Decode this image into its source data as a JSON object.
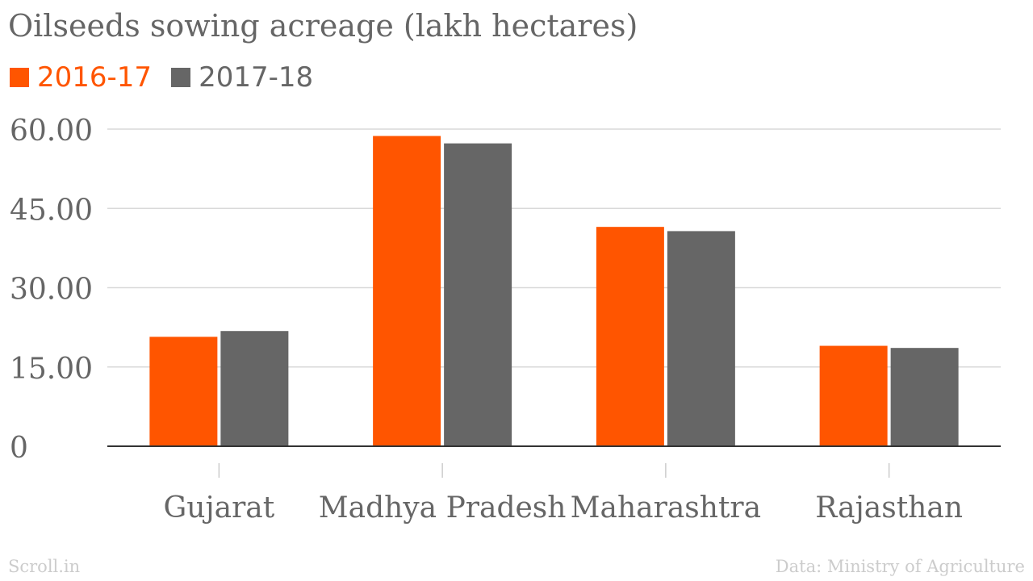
{
  "source_left": "Scroll.in",
  "source_right": "Data: Ministry of Agriculture",
  "chart_data": {
    "type": "bar",
    "title": "Oilseeds sowing acreage (lakh hectares)",
    "categories": [
      "Gujarat",
      "Madhya Pradesh",
      "Maharashtra",
      "Rajasthan"
    ],
    "series": [
      {
        "name": "2016-17",
        "color": "#ff5500",
        "values": [
          20.7,
          58.7,
          41.5,
          19.0
        ]
      },
      {
        "name": "2017-18",
        "color": "#666666",
        "values": [
          21.8,
          57.3,
          40.7,
          18.6
        ]
      }
    ],
    "yticks": [
      "0",
      "15.00",
      "30.00",
      "45.00",
      "60.00"
    ],
    "ylim": [
      0,
      60
    ],
    "grid": true,
    "legend_position": "top-left"
  }
}
